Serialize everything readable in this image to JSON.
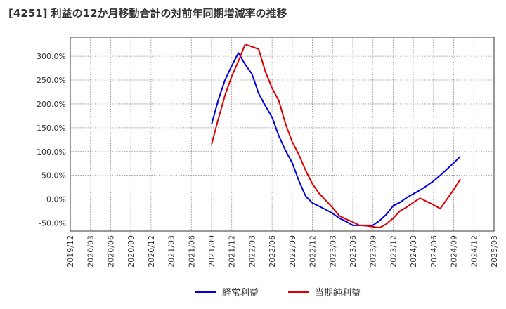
{
  "chart_data": {
    "type": "line",
    "title": "[4251]  利益の12か月移動合計の対前年同期増減率の推移",
    "xlabel": "",
    "ylabel": "",
    "x_ticks": [
      "2019/12",
      "2020/03",
      "2020/06",
      "2020/09",
      "2020/12",
      "2021/03",
      "2021/06",
      "2021/09",
      "2021/12",
      "2022/03",
      "2022/06",
      "2022/09",
      "2022/12",
      "2023/03",
      "2023/06",
      "2023/09",
      "2023/12",
      "2024/03",
      "2024/06",
      "2024/09",
      "2024/12",
      "2025/03"
    ],
    "y_ticks": [
      -50,
      0,
      50,
      100,
      150,
      200,
      250,
      300
    ],
    "y_tick_labels": [
      "-50.0%",
      "0.0%",
      "50.0%",
      "100.0%",
      "150.0%",
      "200.0%",
      "250.0%",
      "300.0%"
    ],
    "ylim": [
      -67,
      340
    ],
    "grid": true,
    "legend_position": "bottom",
    "series": [
      {
        "name": "経常利益",
        "color": "#0000dd",
        "start_index": 7,
        "values": [
          157,
          208,
          250,
          280,
          307,
          283,
          263,
          222,
          196,
          172,
          133,
          102,
          76,
          38,
          6,
          -8,
          -15,
          -22,
          -30,
          -40,
          -47,
          -55,
          -55,
          -55,
          -55,
          -45,
          -32,
          -14,
          -7,
          3,
          11,
          19,
          28,
          38,
          50,
          63,
          76,
          90
        ]
      },
      {
        "name": "当期純利益",
        "color": "#dd0000",
        "start_index": 7,
        "values": [
          115,
          168,
          218,
          258,
          290,
          325,
          320,
          315,
          268,
          233,
          207,
          158,
          120,
          93,
          60,
          32,
          12,
          -3,
          -18,
          -35,
          -42,
          -48,
          -55,
          -56,
          -58,
          -60,
          -52,
          -40,
          -25,
          -17,
          -7,
          2,
          -5,
          -12,
          -20,
          0,
          20,
          42
        ]
      }
    ]
  }
}
